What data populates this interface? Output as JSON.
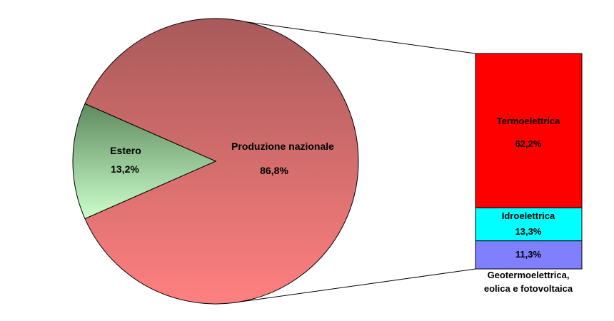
{
  "chart_data": {
    "type": "bar-of-pie",
    "pie": {
      "slices": [
        {
          "label": "Produzione nazionale",
          "value": 86.8,
          "value_label": "86,8%",
          "color_top": "#a85a5a",
          "color_bottom": "#ff8080"
        },
        {
          "label": "Estero",
          "value": 13.2,
          "value_label": "13,2%",
          "color_top": "#5e8a5e",
          "color_bottom": "#ccffcc"
        }
      ]
    },
    "bar": {
      "segments": [
        {
          "label": "Termoelettrica",
          "value": 62.2,
          "value_label": "62,2%",
          "color": "#ff0000"
        },
        {
          "label": "Idroelettrica",
          "value": 13.3,
          "value_label": "13,3%",
          "color": "#00ffff"
        },
        {
          "label": "",
          "value": 11.3,
          "value_label": "11,3%",
          "color": "#8080ff"
        }
      ],
      "external_label": [
        "Geotermoelettrica,",
        "eolica e fotovoltaica"
      ]
    }
  }
}
